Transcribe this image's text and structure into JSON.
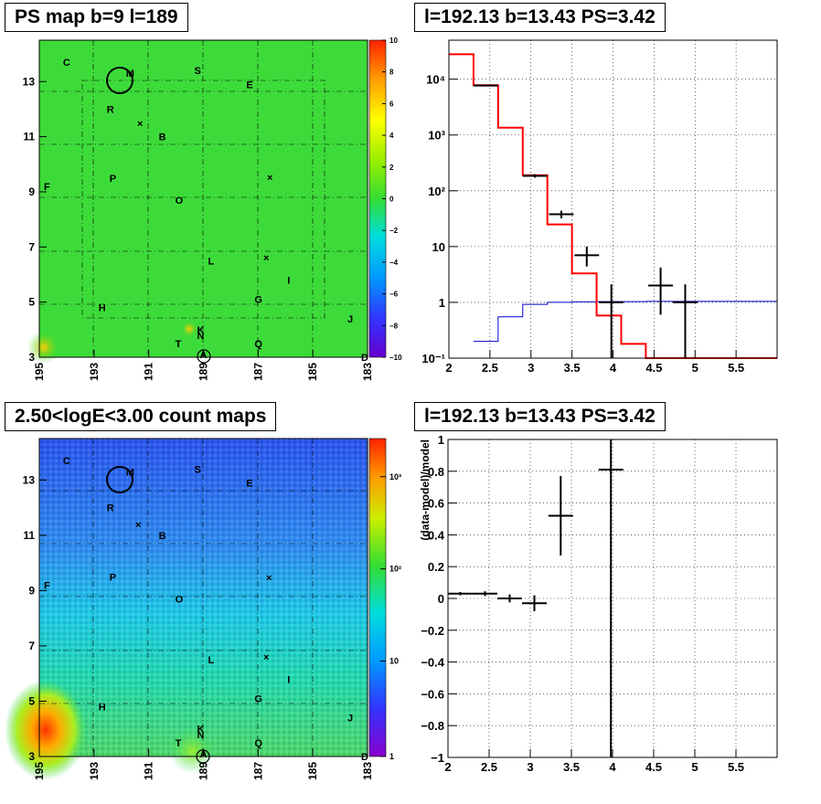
{
  "panels": {
    "ps_map": {
      "title": "PS map b=9 l=189",
      "x_ticks": [
        "195",
        "193",
        "191",
        "189",
        "187",
        "185",
        "183"
      ],
      "y_ticks": [
        "3",
        "5",
        "7",
        "9",
        "11",
        "13"
      ],
      "colorbar_ticks": [
        "10",
        "8",
        "6",
        "4",
        "2",
        "0",
        "−2",
        "−4",
        "−6",
        "−8",
        "−10"
      ],
      "source_labels": [
        "C",
        "M",
        "S",
        "E",
        "R",
        "B",
        "F",
        "P",
        "O",
        "L",
        "I",
        "G",
        "H",
        "J",
        "T",
        "K",
        "N",
        "Q",
        "A",
        "D"
      ]
    },
    "count_map": {
      "title": "2.50<logE<3.00 count maps",
      "x_ticks": [
        "195",
        "193",
        "191",
        "189",
        "187",
        "185",
        "183"
      ],
      "y_ticks": [
        "3",
        "5",
        "7",
        "9",
        "11",
        "13"
      ],
      "colorbar_ticks": [
        "10³",
        "10²",
        "10",
        "1"
      ],
      "source_labels": [
        "C",
        "M",
        "S",
        "E",
        "R",
        "B",
        "F",
        "P",
        "O",
        "L",
        "I",
        "G",
        "H",
        "J",
        "T",
        "K",
        "N",
        "Q",
        "A",
        "D"
      ]
    },
    "spectrum": {
      "title": "l=192.13 b=13.43 PS=3.42",
      "x_ticks": [
        "2",
        "2.5",
        "3",
        "3.5",
        "4",
        "4.5",
        "5",
        "5.5"
      ],
      "y_ticks": [
        "10⁻¹",
        "1",
        "10",
        "10²",
        "10³",
        "10⁴"
      ]
    },
    "residual": {
      "title": "l=192.13 b=13.43 PS=3.42",
      "ylabel": "(data-model)/model",
      "x_ticks": [
        "2",
        "2.5",
        "3",
        "3.5",
        "4",
        "4.5",
        "5",
        "5.5"
      ],
      "y_ticks": [
        "1",
        "0.8",
        "0.6",
        "0.4",
        "0.2",
        "0",
        "−0.2",
        "−0.4",
        "−0.6",
        "−0.8",
        "−1"
      ]
    }
  },
  "colors": {
    "model_red": "#ff0000",
    "background_blue": "#0000cc",
    "data_black": "#000000",
    "map_green": "#33dd33"
  },
  "chart_data": [
    {
      "type": "heatmap",
      "title": "PS map b=9 l=189",
      "xlim": [
        195,
        183
      ],
      "ylim": [
        3,
        14.5
      ],
      "zlim": [
        -10,
        10
      ],
      "grid": true,
      "sources": [
        {
          "label": "C",
          "l": 194.0,
          "b": 13.7
        },
        {
          "label": "M",
          "l": 191.7,
          "b": 13.3
        },
        {
          "label": "S",
          "l": 189.2,
          "b": 13.4
        },
        {
          "label": "E",
          "l": 187.3,
          "b": 12.9
        },
        {
          "label": "R",
          "l": 192.4,
          "b": 12.0
        },
        {
          "label": "B",
          "l": 190.5,
          "b": 11.0
        },
        {
          "label": "F",
          "l": 194.7,
          "b": 9.2
        },
        {
          "label": "P",
          "l": 192.3,
          "b": 9.5
        },
        {
          "label": "O",
          "l": 189.9,
          "b": 8.7
        },
        {
          "label": "L",
          "l": 188.7,
          "b": 6.5
        },
        {
          "label": "I",
          "l": 185.8,
          "b": 5.8
        },
        {
          "label": "G",
          "l": 187.0,
          "b": 5.1
        },
        {
          "label": "H",
          "l": 192.7,
          "b": 4.8
        },
        {
          "label": "J",
          "l": 183.6,
          "b": 4.4
        },
        {
          "label": "T",
          "l": 189.9,
          "b": 3.5
        },
        {
          "label": "K",
          "l": 189.1,
          "b": 4.0
        },
        {
          "label": "N",
          "l": 189.1,
          "b": 3.8
        },
        {
          "label": "Q",
          "l": 187.0,
          "b": 3.5
        },
        {
          "label": "A",
          "l": 189.0,
          "b": 3.1
        },
        {
          "label": "D",
          "l": 183.1,
          "b": 3.0
        }
      ]
    },
    {
      "type": "line",
      "title": "l=192.13 b=13.43 PS=3.42",
      "log_y": true,
      "xlim": [
        2,
        6
      ],
      "ylim": [
        0.1,
        50000
      ],
      "grid": true,
      "series": [
        {
          "style": "step",
          "color": "#ff0000",
          "edges": [
            2.0,
            2.3,
            2.6,
            2.9,
            3.2,
            3.5,
            3.8,
            4.1,
            4.4,
            6.0
          ],
          "values": [
            28000,
            7800,
            1350,
            190,
            25,
            3.3,
            0.58,
            0.18,
            0.1
          ]
        },
        {
          "style": "step",
          "color": "#0000cc",
          "edges": [
            2.3,
            2.6,
            2.9,
            3.2,
            3.5,
            3.8,
            4.1,
            4.4,
            6.0
          ],
          "values": [
            0.2,
            0.55,
            0.92,
            1.0,
            1.02,
            1.03,
            1.03,
            1.04
          ]
        },
        {
          "style": "errorbar",
          "color": "#000000",
          "points": [
            {
              "x": 2.45,
              "y": 7700,
              "xerr": 0.15,
              "ylo": 7550,
              "yhi": 7850
            },
            {
              "x": 3.05,
              "y": 185,
              "xerr": 0.15,
              "ylo": 172,
              "yhi": 198
            },
            {
              "x": 3.37,
              "y": 38,
              "xerr": 0.15,
              "ylo": 32,
              "yhi": 44
            },
            {
              "x": 3.68,
              "y": 7,
              "xerr": 0.15,
              "ylo": 4.4,
              "yhi": 10
            },
            {
              "x": 3.98,
              "y": 1,
              "xerr": 0.15,
              "ylo": 0.1,
              "yhi": 2.1
            },
            {
              "x": 4.58,
              "y": 2,
              "xerr": 0.15,
              "ylo": 0.6,
              "yhi": 4.2
            },
            {
              "x": 4.88,
              "y": 1,
              "xerr": 0.15,
              "ylo": 0.1,
              "yhi": 2.1
            }
          ]
        }
      ]
    },
    {
      "type": "scatter",
      "title": "l=192.13 b=13.43 PS=3.42",
      "ylabel": "(data-model)/model",
      "xlim": [
        2,
        6
      ],
      "ylim": [
        -1,
        1
      ],
      "grid": true,
      "points": [
        {
          "x": 2.15,
          "y": 0.03,
          "xerr": 0.15,
          "yerr": 0.01
        },
        {
          "x": 2.45,
          "y": 0.03,
          "xerr": 0.15,
          "yerr": 0.015
        },
        {
          "x": 2.75,
          "y": 0.0,
          "xerr": 0.15,
          "yerr": 0.025
        },
        {
          "x": 3.05,
          "y": -0.03,
          "xerr": 0.15,
          "yerr": 0.05
        },
        {
          "x": 3.37,
          "y": 0.52,
          "xerr": 0.15,
          "yerr": 0.25
        },
        {
          "x": 3.98,
          "y": 0.81,
          "xerr": 0.15,
          "yerr": 2.0
        }
      ]
    },
    {
      "type": "heatmap",
      "title": "2.50<logE<3.00 count maps",
      "log_z": true,
      "xlim": [
        195,
        183
      ],
      "ylim": [
        3,
        14.5
      ],
      "zlim": [
        1,
        3000
      ],
      "grid": true
    }
  ]
}
